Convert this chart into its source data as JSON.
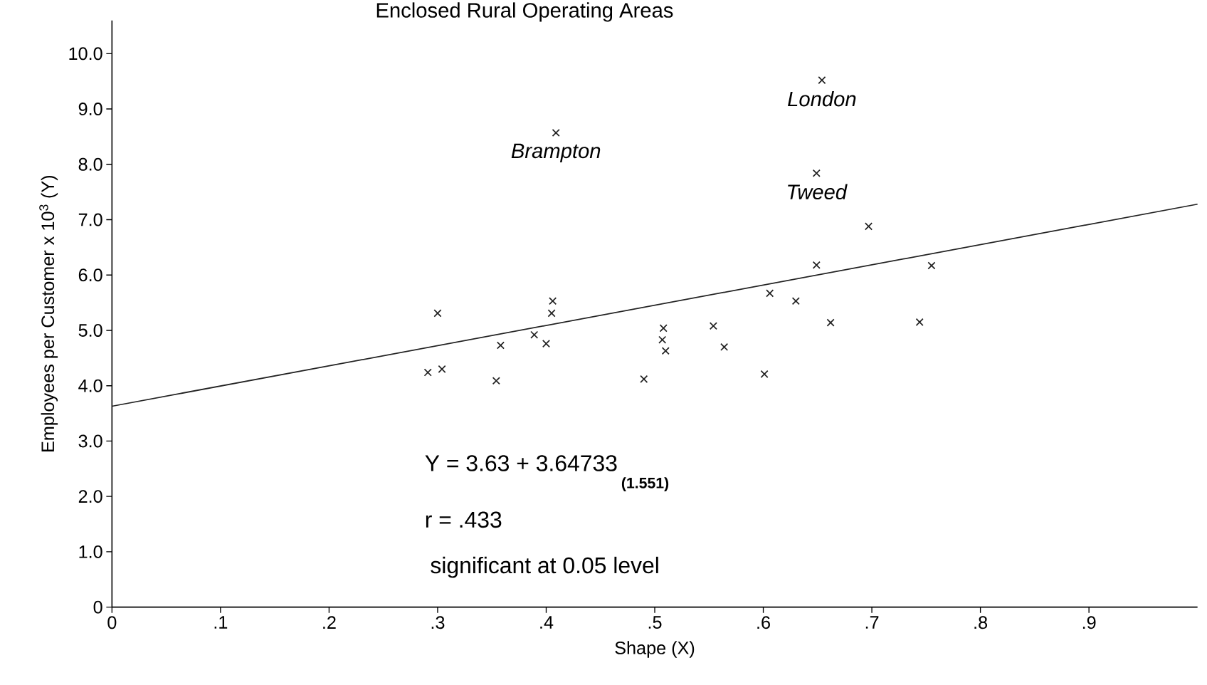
{
  "chart_data": {
    "type": "scatter",
    "title": "Enclosed Rural Operating Areas",
    "xlabel": "Shape (X)",
    "ylabel": "Employees per Customer x 10$^{3}$ (Y)",
    "xlim": [
      0,
      1
    ],
    "ylim": [
      0,
      10.6
    ],
    "xticks": [
      0,
      {
        "value": 0.1,
        "label": ".1"
      },
      {
        "value": 0.2,
        "label": ".2"
      },
      {
        "value": 0.3,
        "label": ".3"
      },
      {
        "value": 0.4,
        "label": ".4"
      },
      {
        "value": 0.5,
        "label": ".5"
      },
      {
        "value": 0.6,
        "label": ".6"
      },
      {
        "value": 0.7,
        "label": ".7"
      },
      {
        "value": 0.8,
        "label": ".8"
      },
      {
        "value": 0.9,
        "label": ".9"
      }
    ],
    "yticks": [
      0,
      {
        "value": 1,
        "label": "1.0"
      },
      {
        "value": 2,
        "label": "2.0"
      },
      {
        "value": 3,
        "label": "3.0"
      },
      {
        "value": 4,
        "label": "4.0"
      },
      {
        "value": 5,
        "label": "5.0"
      },
      {
        "value": 6,
        "label": "6.0"
      },
      {
        "value": 7,
        "label": "7.0"
      },
      {
        "value": 8,
        "label": "8.0"
      },
      {
        "value": 9,
        "label": "9.0"
      },
      {
        "value": 10,
        "label": "10.0"
      }
    ],
    "grid": false,
    "series": [
      {
        "color": "#222222",
        "marker": "cross",
        "x": [
          0.291,
          0.3,
          0.304,
          0.354,
          0.358,
          0.389,
          0.4,
          0.405,
          0.406,
          0.409,
          0.49,
          0.508,
          0.507,
          0.51,
          0.554,
          0.564,
          0.601,
          0.606,
          0.63,
          0.654,
          0.649,
          0.649,
          0.662,
          0.697,
          0.744,
          0.755
        ],
        "values": [
          4.24,
          5.31,
          4.3,
          4.09,
          4.73,
          4.92,
          4.76,
          5.31,
          5.53,
          8.57,
          4.12,
          5.04,
          4.83,
          4.63,
          5.08,
          4.7,
          4.21,
          5.67,
          5.53,
          9.52,
          7.84,
          6.18,
          5.14,
          6.88,
          5.15,
          6.17
        ]
      },
      {
        "type": "line",
        "color": "#222222",
        "line_style": "solid",
        "marker": "none",
        "x": [
          0,
          1
        ],
        "values": [
          3.63,
          7.28
        ]
      }
    ],
    "annotations": [
      {
        "text": "London",
        "x": 0.654,
        "y": 9.52
      },
      {
        "text": "Brampton",
        "x": 0.409,
        "y": 8.57
      },
      {
        "text": "Tweed",
        "x": 0.649,
        "y": 7.84
      },
      "Y = 3.63 + 3.64733",
      "(1.551)",
      "r = .433",
      "significant at 0.05 level"
    ]
  }
}
